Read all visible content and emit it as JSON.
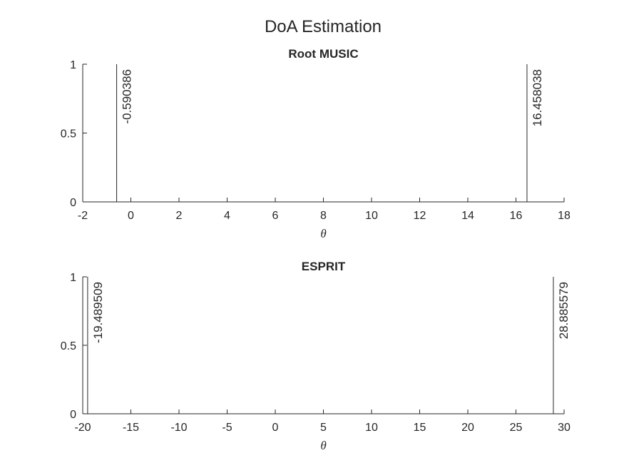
{
  "figure": {
    "title": "DoA Estimation"
  },
  "chart_data": [
    {
      "type": "bar",
      "title": "Root MUSIC",
      "xlabel": "θ",
      "ylabel": "",
      "xlim": [
        -2,
        18
      ],
      "ylim": [
        0,
        1
      ],
      "xticks": [
        -2,
        0,
        2,
        4,
        6,
        8,
        10,
        12,
        14,
        16,
        18
      ],
      "yticks": [
        0,
        0.5,
        1
      ],
      "xtick_labels": [
        "-2",
        "0",
        "2",
        "4",
        "6",
        "8",
        "10",
        "12",
        "14",
        "16",
        "18"
      ],
      "ytick_labels": [
        "0",
        "0.5",
        "1"
      ],
      "x": [
        -0.590386,
        16.458038
      ],
      "values": [
        1,
        1
      ],
      "annotations": [
        "-0.590386",
        "16.458038"
      ],
      "grid": false,
      "box": false
    },
    {
      "type": "bar",
      "title": "ESPRIT",
      "xlabel": "θ",
      "ylabel": "",
      "xlim": [
        -20,
        30
      ],
      "ylim": [
        0,
        1
      ],
      "xticks": [
        -20,
        -15,
        -10,
        -5,
        0,
        5,
        10,
        15,
        20,
        25,
        30
      ],
      "yticks": [
        0,
        0.5,
        1
      ],
      "xtick_labels": [
        "-20",
        "-15",
        "-10",
        "-5",
        "0",
        "5",
        "10",
        "15",
        "20",
        "25",
        "30"
      ],
      "ytick_labels": [
        "0",
        "0.5",
        "1"
      ],
      "x": [
        -19.489509,
        28.885579
      ],
      "values": [
        1,
        1
      ],
      "annotations": [
        "-19.489509",
        "28.885579"
      ],
      "grid": false,
      "box": false
    }
  ]
}
